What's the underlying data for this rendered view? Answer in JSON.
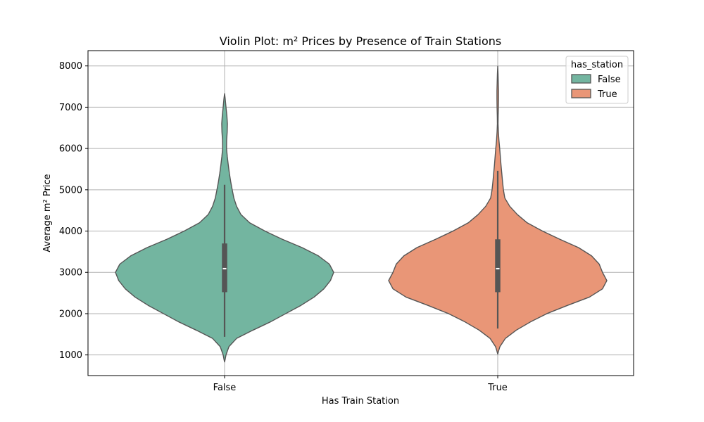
{
  "chart_data": {
    "type": "violin",
    "title": "Violin Plot: m² Prices by Presence of Train Stations",
    "xlabel": "Has Train Station",
    "ylabel": "Average m² Price",
    "categories": [
      "False",
      "True"
    ],
    "ylim": [
      500,
      8370
    ],
    "yticks": [
      1000,
      2000,
      3000,
      4000,
      5000,
      6000,
      7000,
      8000
    ],
    "grid": true,
    "legend": {
      "title": "has_station",
      "placement": "top-right",
      "entries": [
        "False",
        "True"
      ]
    },
    "series": [
      {
        "name": "False",
        "color": "#73b5a0",
        "density_range": [
          830,
          7330
        ],
        "box": {
          "q1": 2520,
          "median": 3090,
          "q3": 3700,
          "whisker_low": 1440,
          "whisker_high": 5120
        },
        "profile": [
          [
            830,
            0.0
          ],
          [
            900,
            0.006
          ],
          [
            1000,
            0.013
          ],
          [
            1200,
            0.04
          ],
          [
            1400,
            0.11
          ],
          [
            1600,
            0.26
          ],
          [
            1800,
            0.42
          ],
          [
            2000,
            0.56
          ],
          [
            2200,
            0.7
          ],
          [
            2400,
            0.82
          ],
          [
            2600,
            0.91
          ],
          [
            2800,
            0.97
          ],
          [
            3000,
            1.0
          ],
          [
            3200,
            0.96
          ],
          [
            3400,
            0.86
          ],
          [
            3600,
            0.71
          ],
          [
            3800,
            0.53
          ],
          [
            4000,
            0.37
          ],
          [
            4200,
            0.23
          ],
          [
            4400,
            0.15
          ],
          [
            4600,
            0.11
          ],
          [
            4800,
            0.085
          ],
          [
            5000,
            0.07
          ],
          [
            5200,
            0.056
          ],
          [
            5400,
            0.044
          ],
          [
            5600,
            0.034
          ],
          [
            5800,
            0.025
          ],
          [
            6000,
            0.018
          ],
          [
            6200,
            0.019
          ],
          [
            6400,
            0.024
          ],
          [
            6600,
            0.026
          ],
          [
            6800,
            0.021
          ],
          [
            7000,
            0.013
          ],
          [
            7200,
            0.006
          ],
          [
            7330,
            0.0
          ]
        ]
      },
      {
        "name": "True",
        "color": "#e99677",
        "density_range": [
          1020,
          7990
        ],
        "box": {
          "q1": 2520,
          "median": 3090,
          "q3": 3800,
          "whisker_low": 1640,
          "whisker_high": 5460
        },
        "profile": [
          [
            1020,
            0.0
          ],
          [
            1100,
            0.008
          ],
          [
            1200,
            0.02
          ],
          [
            1400,
            0.07
          ],
          [
            1600,
            0.17
          ],
          [
            1800,
            0.3
          ],
          [
            2000,
            0.45
          ],
          [
            2200,
            0.64
          ],
          [
            2400,
            0.84
          ],
          [
            2600,
            0.96
          ],
          [
            2800,
            1.0
          ],
          [
            3000,
            0.96
          ],
          [
            3200,
            0.93
          ],
          [
            3400,
            0.86
          ],
          [
            3600,
            0.74
          ],
          [
            3800,
            0.57
          ],
          [
            4000,
            0.41
          ],
          [
            4200,
            0.27
          ],
          [
            4400,
            0.18
          ],
          [
            4600,
            0.11
          ],
          [
            4800,
            0.065
          ],
          [
            5000,
            0.052
          ],
          [
            5200,
            0.044
          ],
          [
            5400,
            0.037
          ],
          [
            5600,
            0.03
          ],
          [
            5800,
            0.024
          ],
          [
            6000,
            0.018
          ],
          [
            6200,
            0.011
          ],
          [
            6400,
            0.006
          ],
          [
            6600,
            0.003
          ],
          [
            6800,
            0.004
          ],
          [
            7000,
            0.006
          ],
          [
            7200,
            0.007
          ],
          [
            7400,
            0.007
          ],
          [
            7600,
            0.005
          ],
          [
            7800,
            0.003
          ],
          [
            7990,
            0.0
          ]
        ]
      }
    ]
  }
}
